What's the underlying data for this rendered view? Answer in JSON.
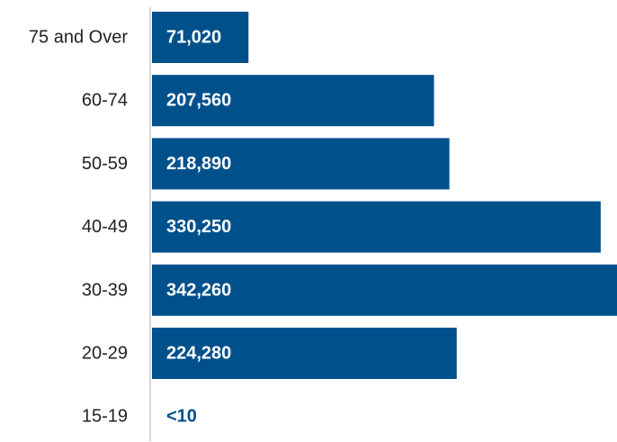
{
  "colors": {
    "bar": "#00508c",
    "bar_label_inside": "#ffffff",
    "bar_label_outside": "#00508c",
    "axis": "#c8c8c8"
  },
  "chart_data": {
    "type": "bar",
    "orientation": "horizontal",
    "categories": [
      "75 and Over",
      "60-74",
      "50-59",
      "40-49",
      "30-39",
      "20-29",
      "15-19"
    ],
    "values": [
      71020,
      207560,
      218890,
      330250,
      342260,
      224280,
      0
    ],
    "value_labels": [
      "71,020",
      "207,560",
      "218,890",
      "330,250",
      "342,260",
      "224,280",
      "<10"
    ],
    "title": "",
    "xlabel": "",
    "ylabel": "",
    "xlim": [
      0,
      342260
    ],
    "grid": false,
    "legend": "none"
  }
}
